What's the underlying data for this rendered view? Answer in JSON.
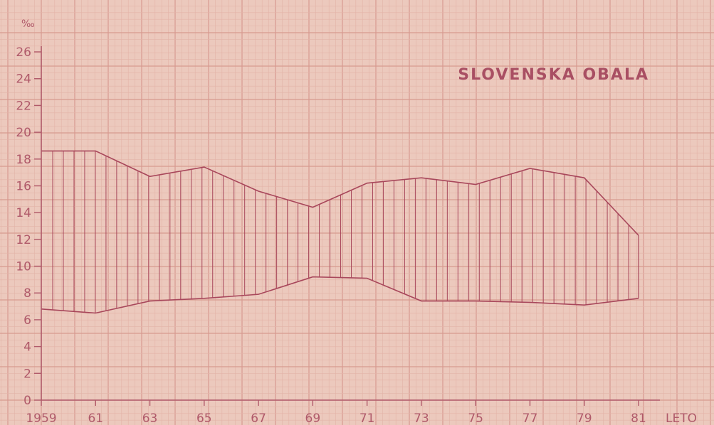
{
  "chart_data": {
    "type": "area",
    "title": "SLOVENSKA OBALA",
    "ylabel": "‰",
    "xlabel": "LETO",
    "ylim": [
      0,
      26
    ],
    "y_ticks": [
      0,
      2,
      4,
      6,
      8,
      10,
      12,
      14,
      16,
      18,
      20,
      22,
      24,
      26
    ],
    "x_tick_labels": [
      "1959",
      "61",
      "63",
      "65",
      "67",
      "69",
      "71",
      "73",
      "75",
      "77",
      "79",
      "81"
    ],
    "x": [
      1959,
      1961,
      1963,
      1965,
      1967,
      1969,
      1971,
      1973,
      1975,
      1977,
      1979,
      1981
    ],
    "upper": [
      18.6,
      18.6,
      16.7,
      17.4,
      15.6,
      14.4,
      16.2,
      16.6,
      16.1,
      17.3,
      16.6,
      12.3
    ],
    "lower": [
      6.8,
      6.5,
      7.4,
      7.6,
      7.9,
      9.2,
      9.1,
      7.4,
      7.4,
      7.3,
      7.1,
      7.6
    ],
    "grid": true,
    "fill": "vertical-hatch",
    "colors": {
      "background": "#ecc9bd",
      "grid_minor": "#e3b3a8",
      "grid_major": "#d79a90",
      "line": "#a8475b",
      "text": "#b05a6a"
    }
  }
}
